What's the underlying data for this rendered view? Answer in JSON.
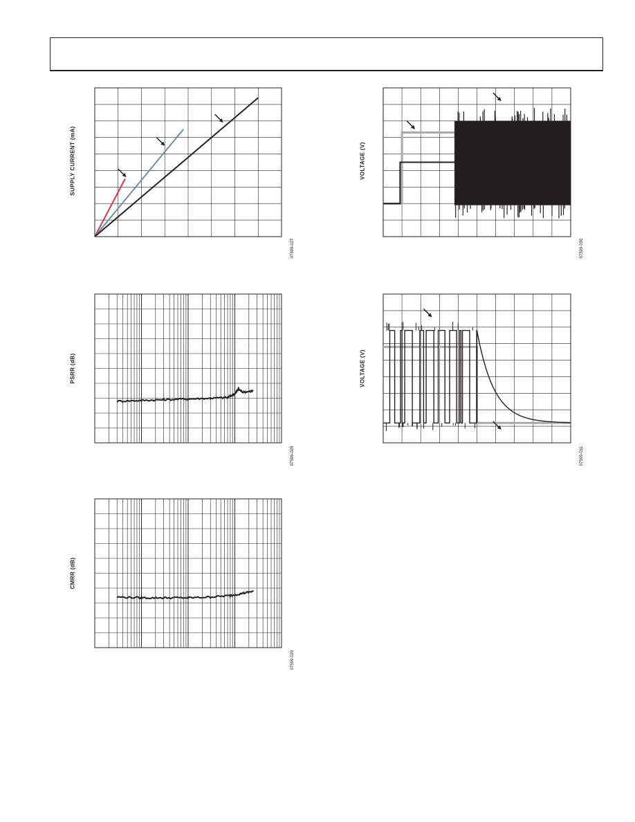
{
  "page": {
    "header": ""
  },
  "charts": [
    {
      "id": "supply-current",
      "ylabel": "SUPPLY CURRENT (mA)",
      "code": "07599-027",
      "chart_data": {
        "type": "line",
        "title": "",
        "xlabel": "",
        "ylabel": "SUPPLY CURRENT (mA)",
        "xlim": [
          0,
          8
        ],
        "ylim": [
          0,
          9
        ],
        "grid": true,
        "series": [
          {
            "color": "#d6384f",
            "points": [
              [
                0,
                0
              ],
              [
                1.3,
                3.5
              ]
            ]
          },
          {
            "color": "#6b8bb8",
            "points": [
              [
                0,
                0
              ],
              [
                3.8,
                6.5
              ]
            ]
          },
          {
            "color": "#231f20",
            "points": [
              [
                0,
                0
              ],
              [
                7,
                8.4
              ]
            ]
          }
        ],
        "annotations": [
          {
            "x": 1.35,
            "y": 3.6
          },
          {
            "x": 3.0,
            "y": 5.5
          },
          {
            "x": 5.5,
            "y": 6.9
          }
        ]
      }
    },
    {
      "id": "psrr",
      "ylabel": "PSRR (dB)",
      "code": "07599-028",
      "chart_data": {
        "type": "line",
        "title": "",
        "xlabel": "",
        "ylabel": "PSRR (dB)",
        "x_scale": "log",
        "xlim": [
          1,
          10000
        ],
        "ylim": [
          0,
          10
        ],
        "grid": true,
        "series": [
          {
            "color": "#231f20",
            "points": [
              [
                3,
                2.8
              ],
              [
                10,
                2.85
              ],
              [
                30,
                2.9
              ],
              [
                100,
                2.95
              ],
              [
                300,
                3.0
              ],
              [
                700,
                3.05
              ],
              [
                1000,
                3.3
              ],
              [
                1200,
                3.6
              ],
              [
                1500,
                3.4
              ],
              [
                2500,
                3.5
              ]
            ]
          }
        ]
      }
    },
    {
      "id": "cmrr",
      "ylabel": "CMRR (dB)",
      "code": "07599-029",
      "chart_data": {
        "type": "line",
        "title": "",
        "xlabel": "",
        "ylabel": "CMRR (dB)",
        "x_scale": "log",
        "xlim": [
          1,
          10000
        ],
        "ylim": [
          0,
          10
        ],
        "grid": true,
        "series": [
          {
            "color": "#231f20",
            "points": [
              [
                3,
                3.4
              ],
              [
                10,
                3.35
              ],
              [
                30,
                3.35
              ],
              [
                100,
                3.35
              ],
              [
                300,
                3.4
              ],
              [
                800,
                3.5
              ],
              [
                1500,
                3.65
              ],
              [
                2500,
                3.8
              ]
            ]
          }
        ]
      }
    },
    {
      "id": "voltage-1",
      "ylabel": "VOLTAGE (V)",
      "code": "07599-030",
      "chart_data": {
        "type": "line",
        "title": "",
        "xlabel": "",
        "ylabel": "VOLTAGE (V)",
        "xlim": [
          0,
          10
        ],
        "ylim": [
          0,
          9
        ],
        "grid": true,
        "series": [
          {
            "color": "#aaaaaa",
            "points": [
              [
                0,
                2.0
              ],
              [
                1.0,
                2.0
              ],
              [
                1.0,
                6.3
              ],
              [
                3.8,
                6.3
              ],
              [
                10,
                6.3
              ]
            ]
          },
          {
            "color": "#231f20",
            "points": [
              [
                0,
                2.0
              ],
              [
                0.9,
                2.0
              ],
              [
                0.9,
                4.5
              ],
              [
                3.8,
                4.5
              ]
            ]
          },
          {
            "color": "#231f20",
            "band": [
              3.8,
              10,
              1.9,
              7.0
            ]
          }
        ],
        "annotations": [
          {
            "x": 1.7,
            "y": 6.5
          },
          {
            "x": 6.3,
            "y": 8.2
          }
        ]
      }
    },
    {
      "id": "voltage-2",
      "ylabel": "VOLTAGE (V)",
      "code": "07599-031",
      "chart_data": {
        "type": "line",
        "title": "",
        "xlabel": "",
        "ylabel": "VOLTAGE (V)",
        "xlim": [
          0,
          10
        ],
        "ylim": [
          0,
          9
        ],
        "grid": true,
        "series": [
          {
            "color": "#aaaaaa",
            "points": [
              [
                0,
                5.8
              ],
              [
                5,
                5.8
              ],
              [
                5,
                1.2
              ],
              [
                10,
                1.2
              ]
            ]
          },
          {
            "color": "#231f20",
            "switching": [
              0,
              5,
              1.2,
              6.8
            ],
            "decay_from": [
              5,
              6.8
            ],
            "decay_to": 1.2
          }
        ],
        "annotations": [
          {
            "x": 2.6,
            "y": 7.6
          },
          {
            "x": 6.3,
            "y": 0.8
          }
        ]
      }
    }
  ]
}
